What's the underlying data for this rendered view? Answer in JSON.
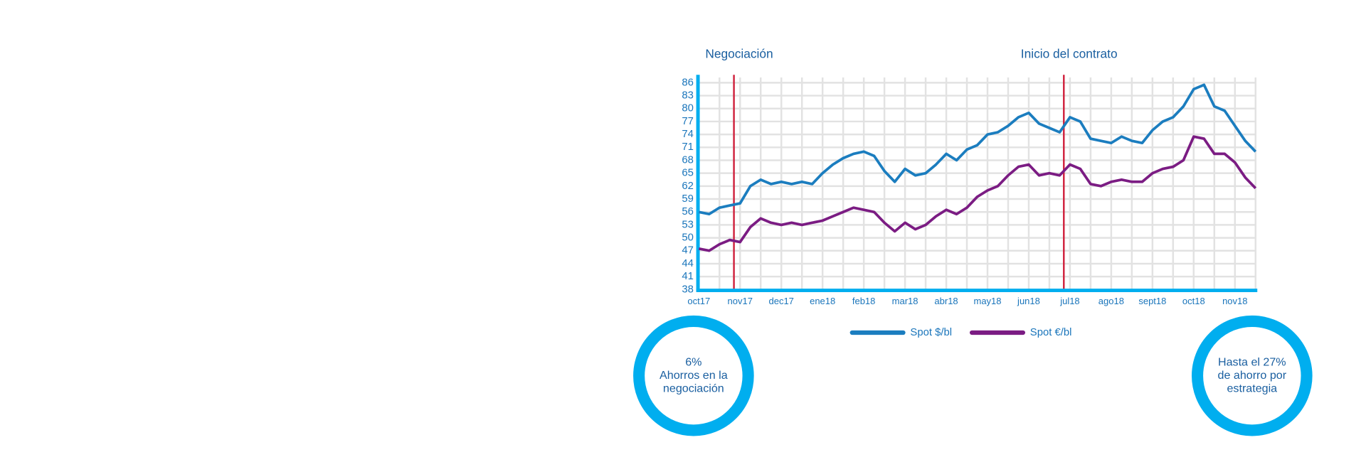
{
  "chart_data": {
    "type": "line",
    "categories": [
      "oct17",
      null,
      null,
      null,
      "nov17",
      null,
      null,
      null,
      "dec17",
      null,
      null,
      null,
      "ene18",
      null,
      null,
      null,
      "feb18",
      null,
      null,
      null,
      "mar18",
      null,
      null,
      null,
      "abr18",
      null,
      null,
      null,
      "may18",
      null,
      null,
      null,
      "jun18",
      null,
      null,
      null,
      "jul18",
      null,
      null,
      null,
      "ago18",
      null,
      null,
      null,
      "sept18",
      null,
      null,
      null,
      "oct18",
      null,
      null,
      null,
      "nov18",
      null,
      null
    ],
    "series": [
      {
        "name": "Spot $/bl",
        "color": "#1b7dbf",
        "values": [
          56,
          55.5,
          57,
          57.5,
          58,
          62,
          63.5,
          62.5,
          63,
          62.5,
          63,
          62.5,
          65,
          67,
          68.5,
          69.5,
          70,
          69,
          65.5,
          63,
          66,
          64.5,
          65,
          67,
          69.5,
          68,
          70.5,
          71.5,
          74,
          74.5,
          76,
          78,
          79,
          76.5,
          75.5,
          74.5,
          78,
          77,
          73,
          72.5,
          72,
          73.5,
          72.5,
          72,
          75,
          77,
          78,
          80.5,
          84.5,
          85.5,
          80.5,
          79.5,
          76,
          72.5,
          70
        ]
      },
      {
        "name": "Spot €/bl",
        "color": "#7b1c83",
        "values": [
          47.5,
          47,
          48.5,
          49.5,
          49,
          52.5,
          54.5,
          53.5,
          53,
          53.5,
          53,
          53.5,
          54,
          55,
          56,
          57,
          56.5,
          56,
          53.5,
          51.5,
          53.5,
          52,
          53,
          55,
          56.5,
          55.5,
          57,
          59.5,
          61,
          62,
          64.5,
          66.5,
          67,
          64.5,
          65,
          64.5,
          67,
          66,
          62.5,
          62,
          63,
          63.5,
          63,
          63,
          65,
          66,
          66.5,
          68,
          73.5,
          73,
          69.5,
          69.5,
          67.5,
          64,
          61.5
        ]
      }
    ],
    "ylim": [
      38,
      86
    ],
    "yticks": [
      38,
      41,
      44,
      47,
      50,
      53,
      56,
      59,
      62,
      65,
      68,
      71,
      74,
      77,
      80,
      83,
      86
    ],
    "grid": true,
    "events": [
      {
        "label": "Negociación",
        "category": "nov17",
        "color": "#d0243f"
      },
      {
        "label": "Inicio del contrato",
        "category": "jul18",
        "color": "#d0243f"
      }
    ]
  },
  "callouts": [
    {
      "lines": [
        "6%",
        "Ahorros en la",
        "negociación"
      ]
    },
    {
      "lines": [
        "Hasta el 27%",
        "de ahorro por",
        "estrategia"
      ]
    }
  ]
}
